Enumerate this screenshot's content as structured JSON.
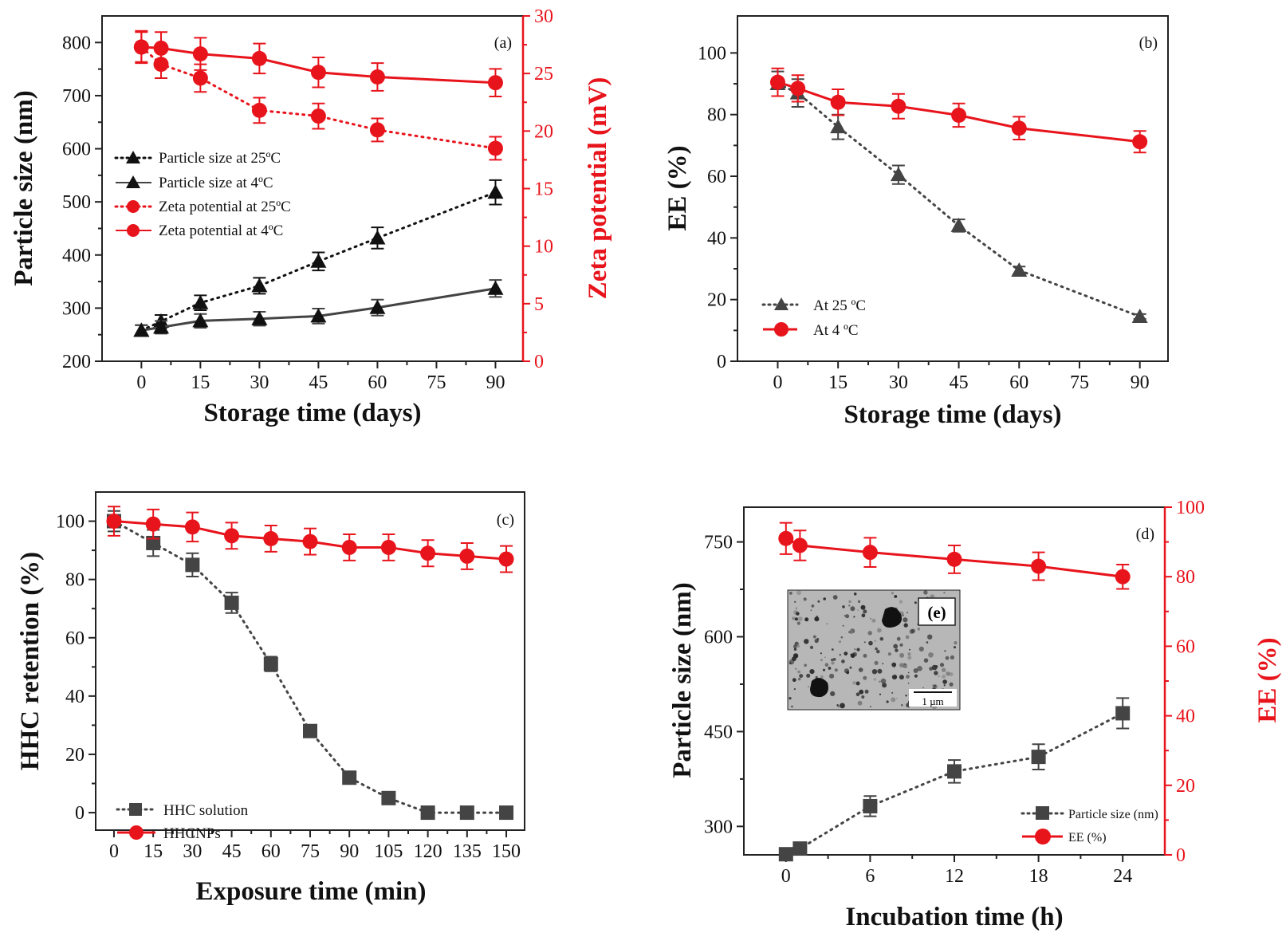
{
  "colors": {
    "red": "#e8141c",
    "black": "#111111",
    "gray": "#444444",
    "axis": "#222222"
  },
  "chart_data": [
    {
      "id": "a",
      "type": "line",
      "panel_label": "(a)",
      "xlabel": "Storage time (days)",
      "ylabel": "Particle size (nm)",
      "y2label": "Zeta potential (mV)",
      "xlim": [
        -10,
        97
      ],
      "ylim": [
        200,
        850
      ],
      "y2lim": [
        0,
        30
      ],
      "xticks": [
        0,
        15,
        30,
        45,
        60,
        75,
        90
      ],
      "yticks": [
        200,
        300,
        400,
        500,
        600,
        700,
        800
      ],
      "y2ticks": [
        0,
        5,
        10,
        15,
        20,
        25,
        30
      ],
      "series": [
        {
          "name": "Particle size at 25ºC",
          "axis": "left",
          "marker": "triangle",
          "line": "dotted",
          "color": "black",
          "x": [
            0,
            5,
            15,
            30,
            45,
            60,
            90
          ],
          "y": [
            258,
            275,
            310,
            342,
            388,
            432,
            518
          ],
          "err": [
            10,
            12,
            14,
            15,
            17,
            20,
            23
          ]
        },
        {
          "name": "Particle size at 4ºC",
          "axis": "left",
          "marker": "triangle",
          "line": "solid",
          "color": "gray",
          "x": [
            0,
            5,
            15,
            30,
            45,
            60,
            90
          ],
          "y": [
            258,
            264,
            276,
            280,
            285,
            301,
            337
          ],
          "err": [
            10,
            12,
            13,
            13,
            14,
            15,
            16
          ]
        },
        {
          "name": "Zeta potential at 25ºC",
          "axis": "right",
          "marker": "circle",
          "line": "dotted",
          "color": "red",
          "x": [
            0,
            5,
            15,
            30,
            45,
            60,
            90
          ],
          "y": [
            27.3,
            25.8,
            24.6,
            21.8,
            21.3,
            20.1,
            18.5
          ],
          "err": [
            1.3,
            1.2,
            1.2,
            1.1,
            1.1,
            1.0,
            1.0
          ]
        },
        {
          "name": "Zeta potential at 4ºC",
          "axis": "right",
          "marker": "circle",
          "line": "solid",
          "color": "red",
          "x": [
            0,
            5,
            15,
            30,
            45,
            60,
            90
          ],
          "y": [
            27.3,
            27.2,
            26.7,
            26.3,
            25.1,
            24.7,
            24.2
          ],
          "err": [
            1.4,
            1.4,
            1.4,
            1.3,
            1.3,
            1.2,
            1.2
          ]
        }
      ]
    },
    {
      "id": "b",
      "type": "line",
      "panel_label": "(b)",
      "xlabel": "Storage time (days)",
      "ylabel": "EE (%)",
      "xlim": [
        -10,
        97
      ],
      "ylim": [
        0,
        112
      ],
      "xticks": [
        0,
        15,
        30,
        45,
        60,
        75,
        90
      ],
      "yticks": [
        0,
        20,
        40,
        60,
        80,
        100
      ],
      "series": [
        {
          "name": "At 25 ºC",
          "axis": "left",
          "marker": "triangle",
          "line": "dotted",
          "color": "gray",
          "x": [
            0,
            5,
            15,
            30,
            45,
            60,
            90
          ],
          "y": [
            90,
            87,
            76,
            60.5,
            44,
            29.5,
            14.5
          ],
          "err": [
            4,
            4.5,
            4,
            3,
            2,
            1.2,
            0.8
          ]
        },
        {
          "name": "At 4 ºC",
          "axis": "left",
          "marker": "circle",
          "line": "solid",
          "color": "red",
          "x": [
            0,
            5,
            15,
            30,
            45,
            60,
            90
          ],
          "y": [
            90.5,
            88.5,
            84,
            82.7,
            79.8,
            75.6,
            71.2
          ],
          "err": [
            4.5,
            4.3,
            4.2,
            4,
            3.8,
            3.7,
            3.5
          ]
        }
      ]
    },
    {
      "id": "c",
      "type": "line",
      "panel_label": "(c)",
      "xlabel": "Exposure time (min)",
      "ylabel": "HHC retention (%)",
      "xlim": [
        -7,
        157
      ],
      "ylim": [
        -6,
        110
      ],
      "xticks": [
        0,
        15,
        30,
        45,
        60,
        75,
        90,
        105,
        120,
        135,
        150
      ],
      "yticks": [
        0,
        20,
        40,
        60,
        80,
        100
      ],
      "series": [
        {
          "name": "HHC solution",
          "axis": "left",
          "marker": "square",
          "line": "dotted",
          "color": "gray",
          "x": [
            0,
            15,
            30,
            45,
            60,
            75,
            90,
            105,
            120,
            135,
            150
          ],
          "y": [
            100,
            92.5,
            85,
            72,
            51,
            28,
            12,
            5,
            0,
            0,
            0
          ],
          "err": [
            3.5,
            4.5,
            4,
            3.5,
            2.5,
            0,
            0,
            0,
            0,
            0,
            0
          ]
        },
        {
          "name": "HHCNPs",
          "axis": "left",
          "marker": "circle",
          "line": "solid",
          "color": "red",
          "x": [
            0,
            15,
            30,
            45,
            60,
            75,
            90,
            105,
            120,
            135,
            150
          ],
          "y": [
            100,
            99,
            98,
            95,
            94,
            93,
            91,
            91,
            89,
            88,
            87
          ],
          "err": [
            5,
            5,
            5,
            4.5,
            4.5,
            4.5,
            4.5,
            4.5,
            4.5,
            4.5,
            4.5
          ]
        }
      ]
    },
    {
      "id": "d",
      "type": "line",
      "panel_label": "(d)",
      "xlabel": "Incubation time (h)",
      "ylabel": "Particle size (nm)",
      "y2label": "EE (%)",
      "xlim": [
        -3,
        27
      ],
      "ylim": [
        255,
        805
      ],
      "y2lim": [
        0,
        100
      ],
      "xticks": [
        0,
        6,
        12,
        18,
        24
      ],
      "yticks": [
        300,
        450,
        600,
        750
      ],
      "y2ticks": [
        0,
        20,
        40,
        60,
        80,
        100
      ],
      "inset_label": "(e)",
      "inset_scale": "1 µm",
      "series": [
        {
          "name": "Particle size (nm)",
          "axis": "left",
          "marker": "square",
          "line": "dotted",
          "color": "gray",
          "x": [
            0,
            1,
            6,
            12,
            18,
            24
          ],
          "y": [
            256,
            265,
            332,
            387,
            410,
            479
          ],
          "err": [
            0,
            0,
            16,
            18,
            20,
            24
          ]
        },
        {
          "name": "EE (%)",
          "axis": "right",
          "marker": "circle",
          "line": "solid",
          "color": "red",
          "x": [
            0,
            1,
            6,
            12,
            18,
            24
          ],
          "y": [
            91,
            89,
            87,
            85,
            83,
            80
          ],
          "err": [
            4.5,
            4.3,
            4.2,
            4,
            4,
            3.5
          ]
        }
      ]
    }
  ]
}
